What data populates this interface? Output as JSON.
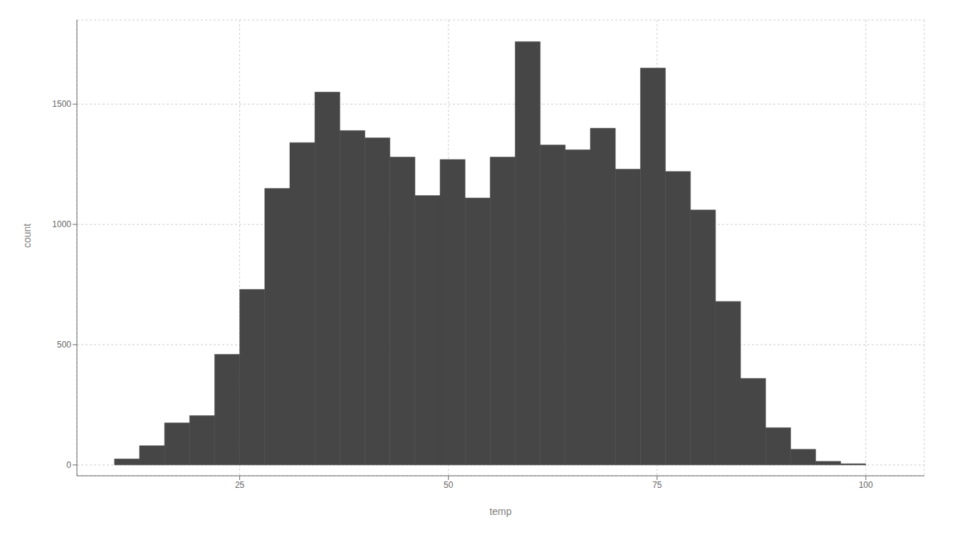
{
  "chart_data": {
    "type": "histogram",
    "title": "",
    "xlabel": "temp",
    "ylabel": "count",
    "bins": [
      10,
      13,
      16,
      19,
      22,
      25,
      28,
      31,
      34,
      37,
      40,
      43,
      46,
      49,
      52,
      55,
      58,
      61,
      64,
      67,
      70,
      73,
      76,
      79,
      82,
      85,
      88,
      91,
      94,
      97,
      100
    ],
    "values": [
      25,
      80,
      175,
      205,
      460,
      730,
      1150,
      1340,
      1550,
      1390,
      1360,
      1280,
      1120,
      1270,
      1110,
      1280,
      1760,
      1330,
      1310,
      1400,
      1230,
      1650,
      1220,
      1060,
      680,
      360,
      155,
      65,
      15,
      5
    ],
    "color": "#464646",
    "xlim": [
      5.5,
      107
    ],
    "ylim": [
      -45,
      1850
    ],
    "xticks": [
      25,
      50,
      75,
      100
    ],
    "yticks": [
      0,
      500,
      1000,
      1500
    ],
    "grid": true
  }
}
